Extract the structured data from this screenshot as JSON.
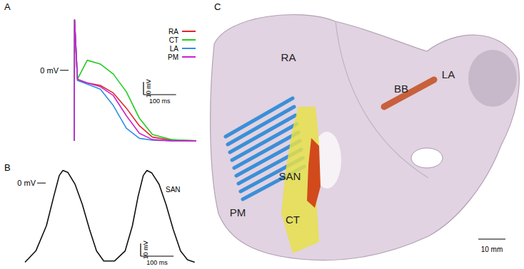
{
  "chart_data": [
    {
      "type": "line",
      "title": "A",
      "x": [
        0,
        1,
        10,
        40,
        80,
        120,
        160,
        200,
        240,
        300,
        375
      ],
      "xlim": [
        0,
        375
      ],
      "ylim": [
        -60,
        40
      ],
      "tick_labels": false,
      "legend": "upper right",
      "series": [
        {
          "name": "RA",
          "color": "#e0262a",
          "values": [
            -56,
            40,
            -8,
            -10,
            -12,
            -18,
            -30,
            -44,
            -53,
            -55.5,
            -56
          ]
        },
        {
          "name": "CT",
          "color": "#22cc22",
          "values": [
            -56,
            40,
            -7,
            8,
            5,
            -3,
            -17,
            -38,
            -51,
            -55,
            -56
          ]
        },
        {
          "name": "LA",
          "color": "#2f8fe0",
          "values": [
            -56,
            40,
            -8,
            -11,
            -15,
            -28,
            -46,
            -54,
            -55.5,
            -56,
            -56
          ]
        },
        {
          "name": "PM",
          "color": "#cc22cc",
          "values": [
            -56,
            40,
            -7,
            -10,
            -13,
            -20,
            -36,
            -50,
            -55,
            -56,
            -56
          ]
        }
      ],
      "annotations": [
        {
          "text": "0 mV",
          "value": 0
        }
      ],
      "scale_bars": [
        {
          "axis": "y",
          "value": 10,
          "label": "10 mV"
        },
        {
          "axis": "x",
          "value": 100,
          "label": "100 ms"
        }
      ]
    },
    {
      "type": "line",
      "title": "B",
      "x": [
        0,
        33,
        65,
        87,
        104,
        115,
        130,
        152,
        174,
        196,
        217,
        239,
        272,
        304,
        326,
        343,
        359,
        370,
        385,
        407,
        428,
        450,
        472,
        493,
        515
      ],
      "xlim": [
        0,
        520
      ],
      "ylim": [
        -65,
        12
      ],
      "tick_labels": false,
      "series": [
        {
          "name": "SAN",
          "color": "#111111",
          "values": [
            -63,
            -54,
            -34,
            -11,
            6,
            10,
            8.5,
            -1,
            -17,
            -37,
            -54,
            -62,
            -62,
            -54,
            -34,
            -11,
            6,
            10,
            8,
            -1,
            -17,
            -37,
            -54,
            -61,
            -63
          ]
        }
      ],
      "annotations": [
        {
          "text": "0 mV",
          "value": 0
        }
      ],
      "scale_bars": [
        {
          "axis": "y",
          "value": 10,
          "label": "10 mV"
        },
        {
          "axis": "x",
          "value": 100,
          "label": "100 ms"
        }
      ]
    }
  ],
  "diagram": {
    "title": "C",
    "regions": [
      {
        "label": "RA",
        "color": "#dccbdc"
      },
      {
        "label": "LA",
        "color": "#dccbdc"
      },
      {
        "label": "PM",
        "color": "#3a8fd8"
      },
      {
        "label": "SAN",
        "color": "#d24a1c"
      },
      {
        "label": "CT",
        "color": "#e6e04a"
      },
      {
        "label": "BB",
        "color": "#c8603c"
      }
    ],
    "scale_bar": {
      "value": 10,
      "label": "10 mm"
    }
  }
}
